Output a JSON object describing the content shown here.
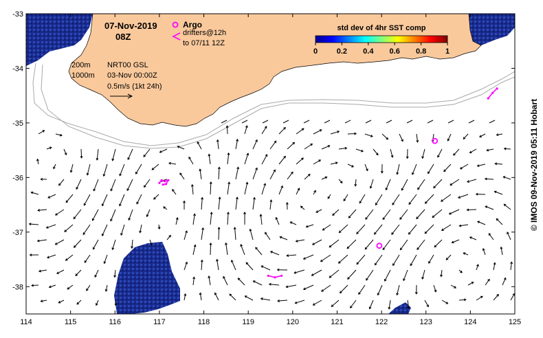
{
  "map": {
    "date_title": "07-Nov-2019",
    "time_title": "08Z",
    "legend": {
      "argo_label": "Argo",
      "drifters_label": "drifters@12h",
      "drifters_period": "to 07/11 12Z"
    },
    "info": {
      "contour_200": "200m",
      "contour_1000": "1000m",
      "product": "NRT00 GSL",
      "analysis_time": "03-Nov 00:00Z",
      "vector_scale": "0.5m/s (1kt 24h)"
    },
    "colorbar": {
      "title": "std dev of 4hr SST comp",
      "ticks": [
        "0",
        "0.2",
        "0.4",
        "0.6",
        "0.8",
        "1"
      ]
    },
    "credit": "© IMOS 09-Nov-2019 05:11 Hobart",
    "x_ticks": [
      "114",
      "115",
      "116",
      "117",
      "118",
      "119",
      "120",
      "121",
      "122",
      "123",
      "124",
      "125"
    ],
    "y_ticks": [
      "-33",
      "-34",
      "-35",
      "-36",
      "-37",
      "-38"
    ],
    "colors": {
      "land": "#f9c99c",
      "sst_dark": "#1a2a8c",
      "argo": "#ff00ff",
      "bathymetry": "#a8a8a8"
    }
  },
  "chart_data": {
    "type": "map",
    "xlabel": "",
    "ylabel": "",
    "xlim": [
      114,
      125
    ],
    "ylim": [
      -38.5,
      -33
    ],
    "argo_floats": [
      {
        "lon": 123.2,
        "lat": -35.33
      },
      {
        "lon": 121.95,
        "lat": -37.25
      }
    ],
    "drifter_tracks": [
      {
        "points": [
          [
            117.0,
            -36.1
          ],
          [
            117.05,
            -36.05
          ],
          [
            117.12,
            -36.07
          ],
          [
            117.2,
            -36.05
          ],
          [
            117.15,
            -36.12
          ],
          [
            117.08,
            -36.13
          ]
        ]
      },
      {
        "points": [
          [
            119.45,
            -37.8
          ],
          [
            119.6,
            -37.83
          ],
          [
            119.75,
            -37.8
          ]
        ]
      },
      {
        "points": [
          [
            124.4,
            -34.55
          ],
          [
            124.5,
            -34.45
          ],
          [
            124.6,
            -34.37
          ]
        ]
      }
    ]
  }
}
